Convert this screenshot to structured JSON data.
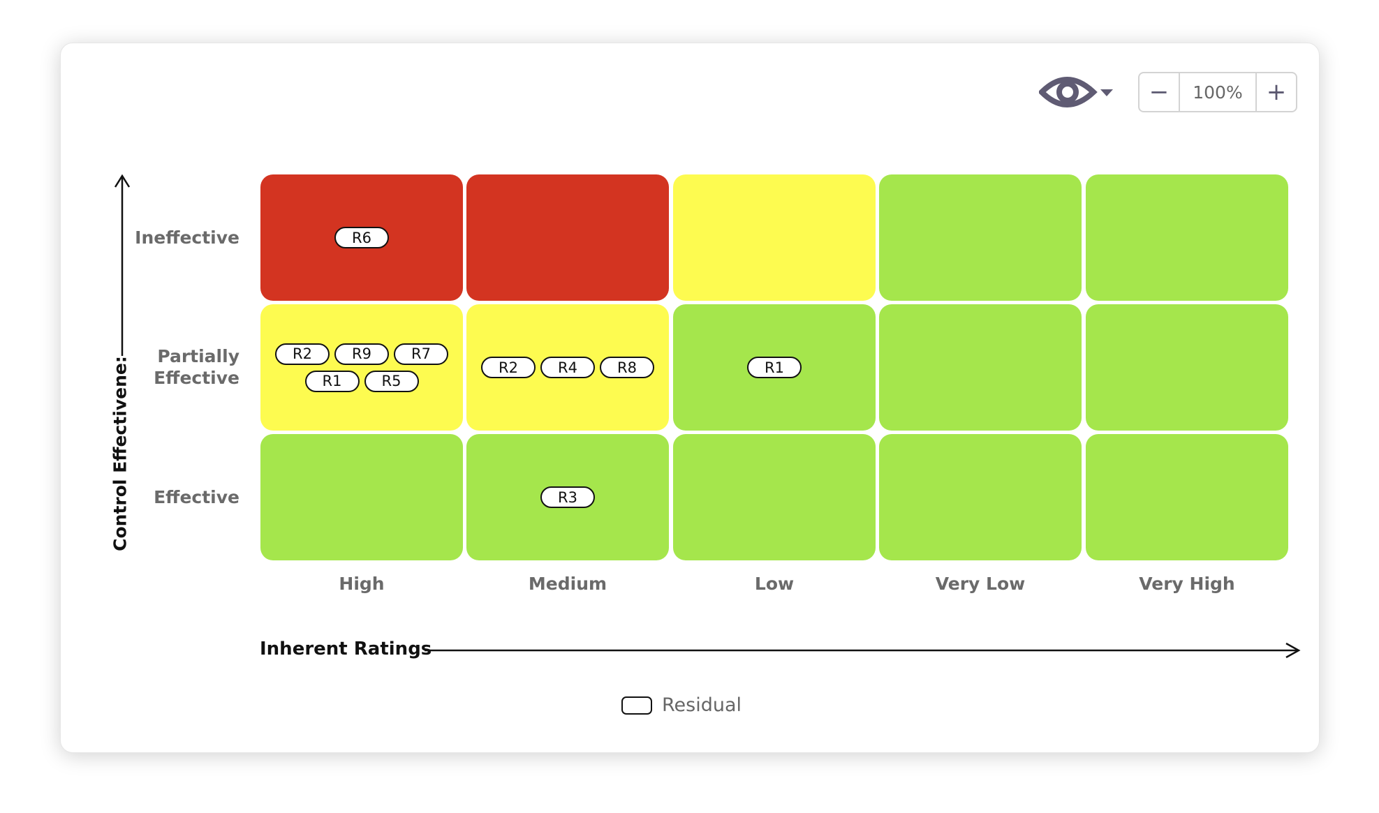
{
  "toolbar": {
    "view_icon": "eye-icon",
    "zoom_out_label": "−",
    "zoom_level": "100%",
    "zoom_in_label": "+"
  },
  "chart_data": {
    "type": "heatmap",
    "title": "",
    "xlabel": "Inherent Ratings",
    "ylabel": "Control Effectivene:",
    "x_categories": [
      "High",
      "Medium",
      "Low",
      "Very Low",
      "Very High"
    ],
    "y_categories": [
      "Ineffective",
      "Partially Effective",
      "Effective"
    ],
    "y_label_lines": [
      [
        "Ineffective"
      ],
      [
        "Partially",
        "Effective"
      ],
      [
        "Effective"
      ]
    ],
    "colors": {
      "red": "#d33421",
      "yellow": "#fdfb50",
      "green": "#a5e64c"
    },
    "cells": [
      [
        "red",
        "red",
        "yellow",
        "green",
        "green"
      ],
      [
        "yellow",
        "yellow",
        "green",
        "green",
        "green"
      ],
      [
        "green",
        "green",
        "green",
        "green",
        "green"
      ]
    ],
    "risks": [
      [
        [
          "R6"
        ],
        [],
        [],
        [],
        []
      ],
      [
        [
          "R2",
          "R9",
          "R7",
          "R1",
          "R5"
        ],
        [
          "R2",
          "R4",
          "R8"
        ],
        [
          "R1"
        ],
        [],
        []
      ],
      [
        [],
        [
          "R3"
        ],
        [],
        [],
        []
      ]
    ],
    "legend": [
      {
        "label": "Residual",
        "shape": "rounded-outline"
      }
    ]
  }
}
